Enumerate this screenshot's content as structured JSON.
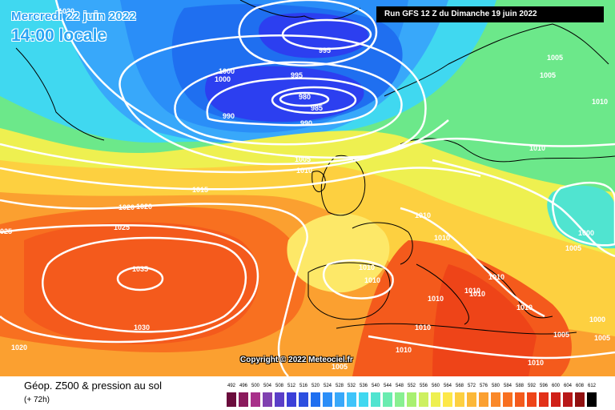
{
  "header": {
    "date": "Mercredi 22 juin 2022",
    "time": "14:00 locale",
    "run": "Run GFS 12 Z du Dimanche 19 juin 2022"
  },
  "copyright": "Copyright © 2022 Meteociel.fr",
  "legend": {
    "title": "Géop. Z500 & pression au sol",
    "subtitle": "(+ 72h)",
    "levels": [
      "492",
      "496",
      "500",
      "504",
      "508",
      "512",
      "516",
      "520",
      "524",
      "528",
      "532",
      "536",
      "540",
      "544",
      "548",
      "552",
      "556",
      "560",
      "564",
      "568",
      "572",
      "576",
      "580",
      "584",
      "588",
      "592",
      "596",
      "600",
      "604",
      "608",
      "612"
    ],
    "colors": [
      "#6a0c3c",
      "#8a1a5c",
      "#a8308a",
      "#8040b0",
      "#5a3ec8",
      "#3a3fd8",
      "#2c4fe0",
      "#1f6ff0",
      "#2a8ef8",
      "#38a8fa",
      "#3ec4fa",
      "#40d8f0",
      "#50e4d0",
      "#68ecb0",
      "#88f090",
      "#a8f070",
      "#cdf060",
      "#eef050",
      "#fde848",
      "#fdd040",
      "#fcb838",
      "#fba030",
      "#fa8828",
      "#f87020",
      "#f45a1c",
      "#ee4418",
      "#e23018",
      "#d02018",
      "#b81818",
      "#901010",
      "#000000"
    ]
  },
  "isobar_labels": [
    {
      "text": "995"
    },
    {
      "text": "995"
    },
    {
      "text": "980"
    },
    {
      "text": "985"
    },
    {
      "text": "990"
    },
    {
      "text": "990"
    },
    {
      "text": "1000"
    },
    {
      "text": "1000"
    },
    {
      "text": "1020"
    },
    {
      "text": "1005"
    },
    {
      "text": "1005"
    },
    {
      "text": "1010"
    },
    {
      "text": "1010"
    },
    {
      "text": "1005"
    },
    {
      "text": "1010"
    },
    {
      "text": "1015"
    },
    {
      "text": "1020"
    },
    {
      "text": "1020"
    },
    {
      "text": "1025"
    },
    {
      "text": "025"
    },
    {
      "text": "1010"
    },
    {
      "text": "1010"
    },
    {
      "text": "1000"
    },
    {
      "text": "1005"
    },
    {
      "text": "1035"
    },
    {
      "text": "1030"
    },
    {
      "text": "1010"
    },
    {
      "text": "1010"
    },
    {
      "text": "1010"
    },
    {
      "text": "1010"
    },
    {
      "text": "1010"
    },
    {
      "text": "1010"
    },
    {
      "text": "1010"
    },
    {
      "text": "1005"
    },
    {
      "text": "1000"
    },
    {
      "text": "1005"
    },
    {
      "text": "1010"
    },
    {
      "text": "1010"
    },
    {
      "text": "1020"
    },
    {
      "text": "1010"
    },
    {
      "text": "1005"
    }
  ]
}
